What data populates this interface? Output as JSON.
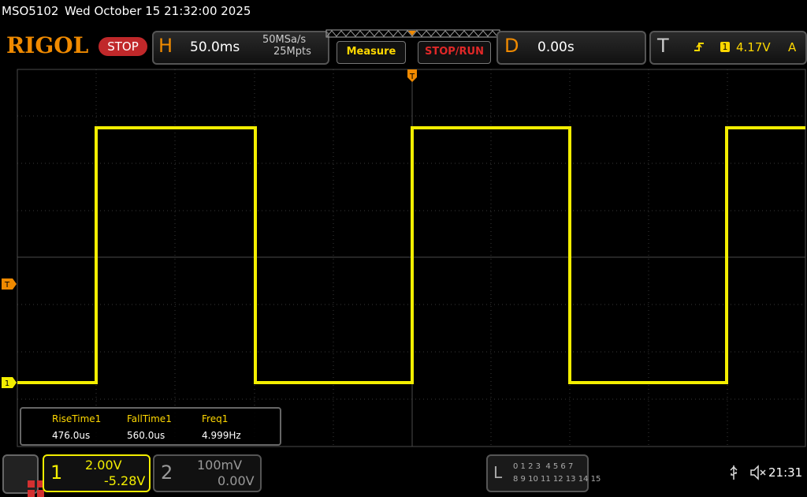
{
  "status_bar": {
    "model": "MSO5102",
    "datetime": "Wed October 15 21:32:00 2025"
  },
  "toolbar": {
    "brand": "RIGOL",
    "run_state": "STOP",
    "horizontal": {
      "label": "H",
      "timebase": "50.0ms",
      "sample_rate": "50MSa/s",
      "memory_depth": "25Mpts"
    },
    "measure_button": "Measure",
    "stop_run_button": "STOP/RUN",
    "delay": {
      "label": "D",
      "value": "0.00s"
    },
    "trigger": {
      "label": "T",
      "source": "1",
      "level": "4.17V",
      "mode": "A"
    }
  },
  "waveform": {
    "trigger_position_marker": "T",
    "trigger_level_marker": "T",
    "channel_marker": "1"
  },
  "measurements": {
    "headers": [
      "RiseTime1",
      "FallTime1",
      "Freq1"
    ],
    "values": [
      "476.0us",
      "560.0us",
      "4.999Hz"
    ]
  },
  "channels": [
    {
      "number": "1",
      "scale": "2.00V",
      "offset": "-5.28V"
    },
    {
      "number": "2",
      "scale": "100mV",
      "offset": "0.00V"
    }
  ],
  "logic": {
    "label": "L",
    "row1": "0 1 2 3  4 5 6 7",
    "row2": "8 9 10 11 12 13 14 15"
  },
  "clock": "21:31"
}
